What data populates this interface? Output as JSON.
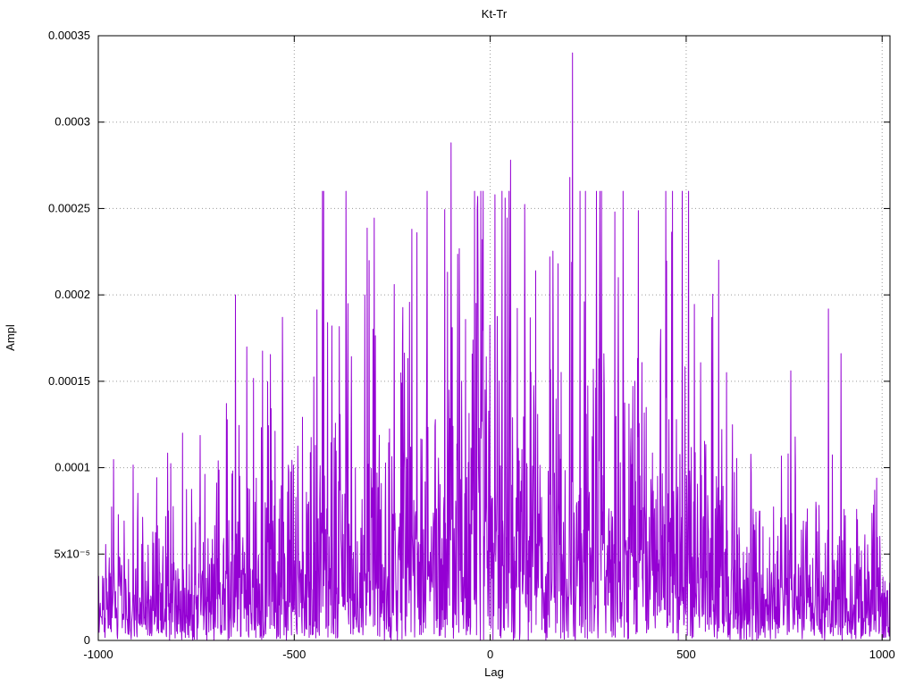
{
  "chart_data": {
    "type": "line",
    "title": "Kt-Tr",
    "xlabel": "Lag",
    "ylabel": "Ampl",
    "xlim": [
      -1000,
      1020
    ],
    "ylim": [
      0,
      0.00035
    ],
    "x_ticks": [
      -1000,
      -500,
      0,
      500,
      1000
    ],
    "y_ticks": [
      {
        "value": 0,
        "label": "0"
      },
      {
        "value": 5e-05,
        "label": "5x10⁻⁵"
      },
      {
        "value": 0.0001,
        "label": "0.0001"
      },
      {
        "value": 0.00015,
        "label": "0.00015"
      },
      {
        "value": 0.0002,
        "label": "0.0002"
      },
      {
        "value": 0.00025,
        "label": "0.00025"
      },
      {
        "value": 0.0003,
        "label": "0.0003"
      },
      {
        "value": 0.00035,
        "label": "0.00035"
      }
    ],
    "grid": true,
    "legend": "none",
    "line_color": "#9400d3",
    "background": "#ffffff",
    "series_description": "Dense noisy spike train of correlation amplitude vs lag; amplitude envelope rises from roughly 2e-5 at the edges (lag ±1000) to roughly 7e-5 near lag 0, with frequent sharp spikes reaching 1.5e-4 to 3.4e-4 in the central region (-700 to +800) and the tallest spike of 0.00034 near lag 210.",
    "noise_profile": {
      "seed": 1337,
      "samples": 2021,
      "step": 1,
      "envelope_base": 2.2e-05,
      "envelope_peak": 5.6e-05,
      "envelope_sigma": 620,
      "distribution": "exponential",
      "scale": 0.85,
      "clip": 0.00026
    },
    "notable_peaks": [
      {
        "lag": 210,
        "ampl": 0.00034
      },
      {
        "lag": -100,
        "ampl": 0.000288
      },
      {
        "lag": 52,
        "ampl": 0.000278
      },
      {
        "lag": 203,
        "ampl": 0.000268
      },
      {
        "lag": 12,
        "ampl": 0.000258
      },
      {
        "lag": -32,
        "ampl": 0.000257
      },
      {
        "lag": 38,
        "ampl": 0.000256
      },
      {
        "lag": 318,
        "ampl": 0.000248
      },
      {
        "lag": -200,
        "ampl": 0.000238
      },
      {
        "lag": -187,
        "ampl": 0.000236
      },
      {
        "lag": 152,
        "ampl": 0.000222
      },
      {
        "lag": 173,
        "ampl": 0.000218
      },
      {
        "lag": -245,
        "ampl": 0.000206
      },
      {
        "lag": -320,
        "ampl": 0.0002
      },
      {
        "lag": -650,
        "ampl": 0.0002
      },
      {
        "lag": 240,
        "ampl": 0.000196
      },
      {
        "lag": 565,
        "ampl": 0.000187
      },
      {
        "lag": -530,
        "ampl": 0.000187
      },
      {
        "lag": -415,
        "ampl": 0.000184
      },
      {
        "lag": 435,
        "ampl": 0.00018
      },
      {
        "lag": -785,
        "ampl": 0.00012
      },
      {
        "lag": 760,
        "ampl": 0.000108
      }
    ]
  }
}
